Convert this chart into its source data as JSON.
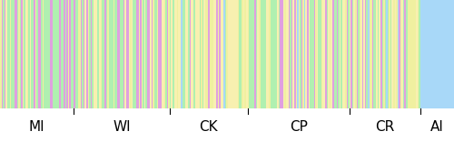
{
  "groups": [
    "MI",
    "WI",
    "CK",
    "CP",
    "CR",
    "AI"
  ],
  "group_sizes": [
    52,
    68,
    55,
    72,
    50,
    24
  ],
  "total_samples": 321,
  "colors": [
    "#f0f0a0",
    "#b0f0b0",
    "#e0a0e0",
    "#f8f0b0",
    "#a8d8f8"
  ],
  "background": "#ffffff",
  "label_fontsize": 11,
  "group_proportions": {
    "MI": [
      0.22,
      0.42,
      0.28,
      0.06,
      0.02
    ],
    "WI": [
      0.18,
      0.35,
      0.28,
      0.16,
      0.03
    ],
    "CK": [
      0.15,
      0.18,
      0.12,
      0.52,
      0.03
    ],
    "CP": [
      0.18,
      0.35,
      0.15,
      0.28,
      0.04
    ],
    "CR": [
      0.18,
      0.35,
      0.22,
      0.2,
      0.05
    ],
    "AI": [
      0.0,
      0.0,
      0.0,
      0.0,
      1.0
    ]
  },
  "seed": 7
}
